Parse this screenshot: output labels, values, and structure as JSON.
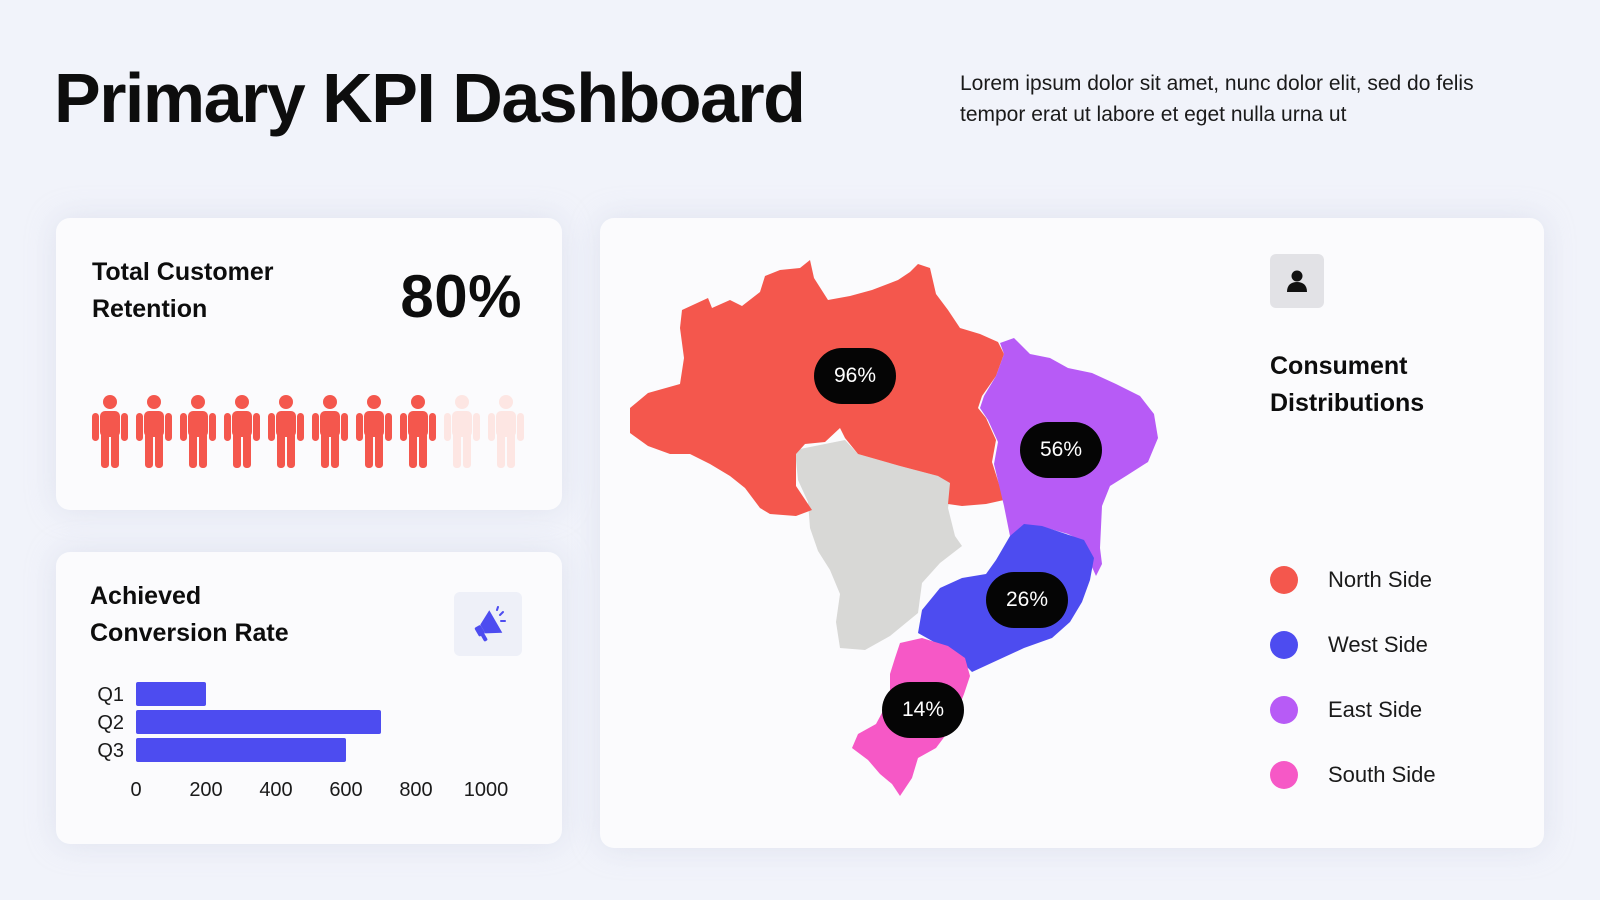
{
  "header": {
    "title": "Primary KPI Dashboard",
    "description": "Lorem ipsum dolor sit amet, nunc dolor elit, sed do felis tempor erat ut labore et eget nulla urna ut"
  },
  "retention": {
    "title_line1": "Total Customer",
    "title_line2": "Retention",
    "value": "80%",
    "icon": "person-icon",
    "filled_count": 8,
    "total_count": 10,
    "filled_color": "#f4574d",
    "empty_color": "#fde6e3"
  },
  "conversion": {
    "title_line1": "Achieved",
    "title_line2": "Conversion Rate",
    "icon": "megaphone-icon",
    "chart_data": {
      "type": "bar",
      "orientation": "horizontal",
      "categories": [
        "Q1",
        "Q2",
        "Q3"
      ],
      "values": [
        200,
        700,
        600
      ],
      "xlim": [
        0,
        1000
      ],
      "xticks": [
        "0",
        "200",
        "400",
        "600",
        "800",
        "1000"
      ],
      "color": "#4d4cf0",
      "grid": false
    }
  },
  "map": {
    "icon": "user-icon",
    "title_line1": "Consument",
    "title_line2": "Distributions",
    "regions": [
      {
        "name": "North Side",
        "value": "96%",
        "color": "#f4574d"
      },
      {
        "name": "West Side",
        "value": "26%",
        "color": "#4d4cf0"
      },
      {
        "name": "East Side",
        "value": "56%",
        "color": "#b75bf6"
      },
      {
        "name": "South Side",
        "value": "14%",
        "color": "#f658c6"
      }
    ],
    "unassigned_color": "#d8d8d6"
  }
}
